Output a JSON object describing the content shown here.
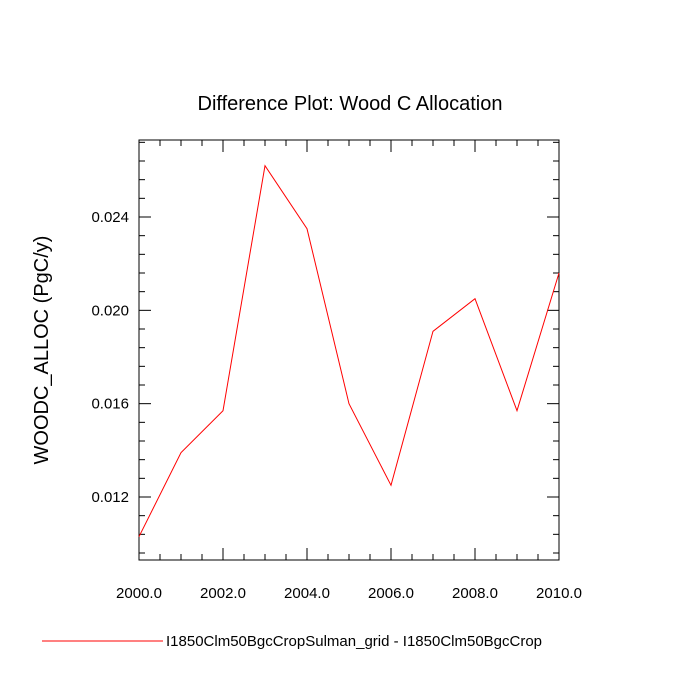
{
  "chart_data": {
    "type": "line",
    "title": "Difference Plot: Wood C Allocation",
    "xlabel": "",
    "ylabel": "WOODC_ALLOC  (PgC/y)",
    "xlim": [
      2000,
      2010
    ],
    "ylim": [
      0.0093,
      0.0273
    ],
    "x_ticks": [
      2000,
      2002,
      2004,
      2006,
      2008,
      2010
    ],
    "x_tick_labels": [
      "2000.0",
      "2002.0",
      "2004.0",
      "2006.0",
      "2008.0",
      "2010.0"
    ],
    "y_ticks": [
      0.012,
      0.016,
      0.02,
      0.024
    ],
    "y_tick_labels": [
      "0.012",
      "0.016",
      "0.020",
      "0.024"
    ],
    "grid": false,
    "legend_position": "bottom",
    "series": [
      {
        "name": "I1850Clm50BgcCropSulman_grid - I1850Clm50BgcCrop",
        "color": "#ff0000",
        "x": [
          2000,
          2001,
          2002,
          2003,
          2004,
          2005,
          2006,
          2007,
          2008,
          2009,
          2010
        ],
        "y": [
          0.0103,
          0.0139,
          0.0157,
          0.0262,
          0.0235,
          0.016,
          0.0125,
          0.0191,
          0.0205,
          0.0157,
          0.0216
        ]
      }
    ]
  }
}
